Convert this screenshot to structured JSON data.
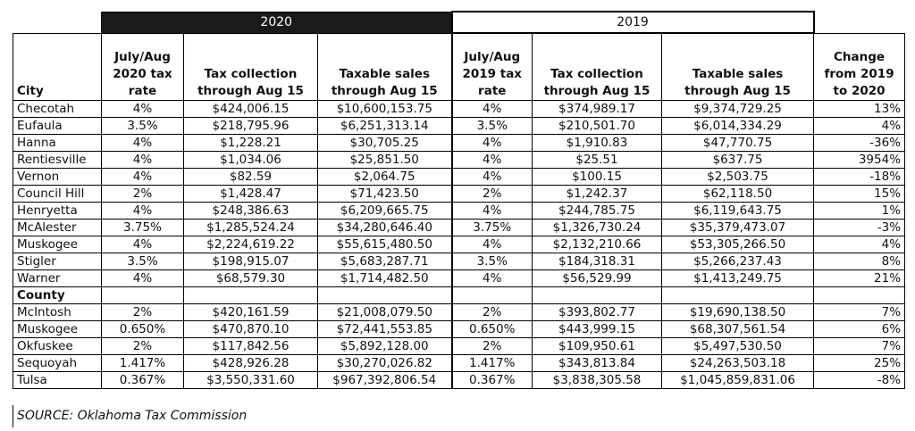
{
  "header": {
    "groups": [
      "2020",
      "2019"
    ],
    "columns": [
      "City",
      "July/Aug\n2020 tax\nrate",
      "Tax collection\nthrough Aug 15",
      "Taxable sales\nthrough Aug 15",
      "July/Aug\n2019 tax\nrate",
      "Tax collection\nthrough Aug 15",
      "Taxable sales\nthrough Aug 15",
      "Change\nfrom 2019\nto 2020"
    ]
  },
  "cities": [
    [
      "Checotah",
      "4%",
      "$424,006.15",
      "$10,600,153.75",
      "4%",
      "$374,989.17",
      "$9,374,729.25",
      "13%"
    ],
    [
      "Eufaula",
      "3.5%",
      "$218,795.96",
      "$6,251,313.14",
      "3.5%",
      "$210,501.70",
      "$6,014,334.29",
      "4%"
    ],
    [
      "Hanna",
      "4%",
      "$1,228.21",
      "$30,705.25",
      "4%",
      "$1,910.83",
      "$47,770.75",
      "-36%"
    ],
    [
      "Rentiesville",
      "4%",
      "$1,034.06",
      "$25,851.50",
      "4%",
      "$25.51",
      "$637.75",
      "3954%"
    ],
    [
      "Vernon",
      "4%",
      "$82.59",
      "$2,064.75",
      "4%",
      "$100.15",
      "$2,503.75",
      "-18%"
    ],
    [
      "Council Hill",
      "2%",
      "$1,428.47",
      "$71,423.50",
      "2%",
      "$1,242.37",
      "$62,118.50",
      "15%"
    ],
    [
      "Henryetta",
      "4%",
      "$248,386.63",
      "$6,209,665.75",
      "4%",
      "$244,785.75",
      "$6,119,643.75",
      "1%"
    ],
    [
      "McAlester",
      "3.75%",
      "$1,285,524.24",
      "$34,280,646.40",
      "3.75%",
      "$1,326,730.24",
      "$35,379,473.07",
      "-3%"
    ],
    [
      "Muskogee",
      "4%",
      "$2,224,619.22",
      "$55,615,480.50",
      "4%",
      "$2,132,210.66",
      "$53,305,266.50",
      "4%"
    ],
    [
      "Stigler",
      "3.5%",
      "$198,915.07",
      "$5,683,287.71",
      "3.5%",
      "$184,318.31",
      "$5,266,237.43",
      "8%"
    ],
    [
      "Warner",
      "4%",
      "$68,579.30",
      "$1,714,482.50",
      "4%",
      "$56,529.99",
      "$1,413,249.75",
      "21%"
    ]
  ],
  "county_label": "County",
  "counties": [
    [
      "McIntosh",
      "2%",
      "$420,161.59",
      "$21,008,079.50",
      "2%",
      "$393,802.77",
      "$19,690,138.50",
      "7%"
    ],
    [
      "Muskogee",
      "0.650%",
      "$470,870.10",
      "$72,441,553.85",
      "0.650%",
      "$443,999.15",
      "$68,307,561.54",
      "6%"
    ],
    [
      "Okfuskee",
      "2%",
      "$117,842.56",
      "$5,892,128.00",
      "2%",
      "$109,950.61",
      "$5,497,530.50",
      "7%"
    ],
    [
      "Sequoyah",
      "1.417%",
      "$428,926.28",
      "$30,270,026.82",
      "1.417%",
      "$343,813.84",
      "$24,263,503.18",
      "25%"
    ],
    [
      "Tulsa",
      "0.367%",
      "$3,550,331.60",
      "$967,392,806.54",
      "0.367%",
      "$3,838,305.58",
      "$1,045,859,831.06",
      "-8%"
    ]
  ],
  "source": "SOURCE: Oklahoma Tax Commission"
}
